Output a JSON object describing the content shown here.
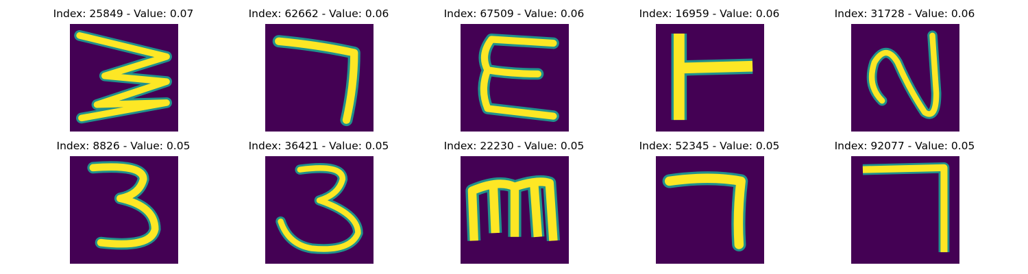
{
  "figure": {
    "colormap": "viridis",
    "colors": {
      "background": "#440154",
      "mid": "#21918c",
      "high": "#fde725"
    },
    "panels": [
      {
        "title": "Index: 25849 - Value: 0.07",
        "glyph": "3"
      },
      {
        "title": "Index: 62662 - Value: 0.06",
        "glyph": "7"
      },
      {
        "title": "Index: 67509 - Value: 0.06",
        "glyph": "E"
      },
      {
        "title": "Index: 16959 - Value: 0.06",
        "glyph": "T"
      },
      {
        "title": "Index: 31728 - Value: 0.06",
        "glyph": "N"
      },
      {
        "title": "Index: 8826 - Value: 0.05",
        "glyph": "3"
      },
      {
        "title": "Index: 36421 - Value: 0.05",
        "glyph": "3"
      },
      {
        "title": "Index: 22230 - Value: 0.05",
        "glyph": "m"
      },
      {
        "title": "Index: 52345 - Value: 0.05",
        "glyph": "7"
      },
      {
        "title": "Index: 92077 - Value: 0.05",
        "glyph": "7"
      }
    ]
  }
}
